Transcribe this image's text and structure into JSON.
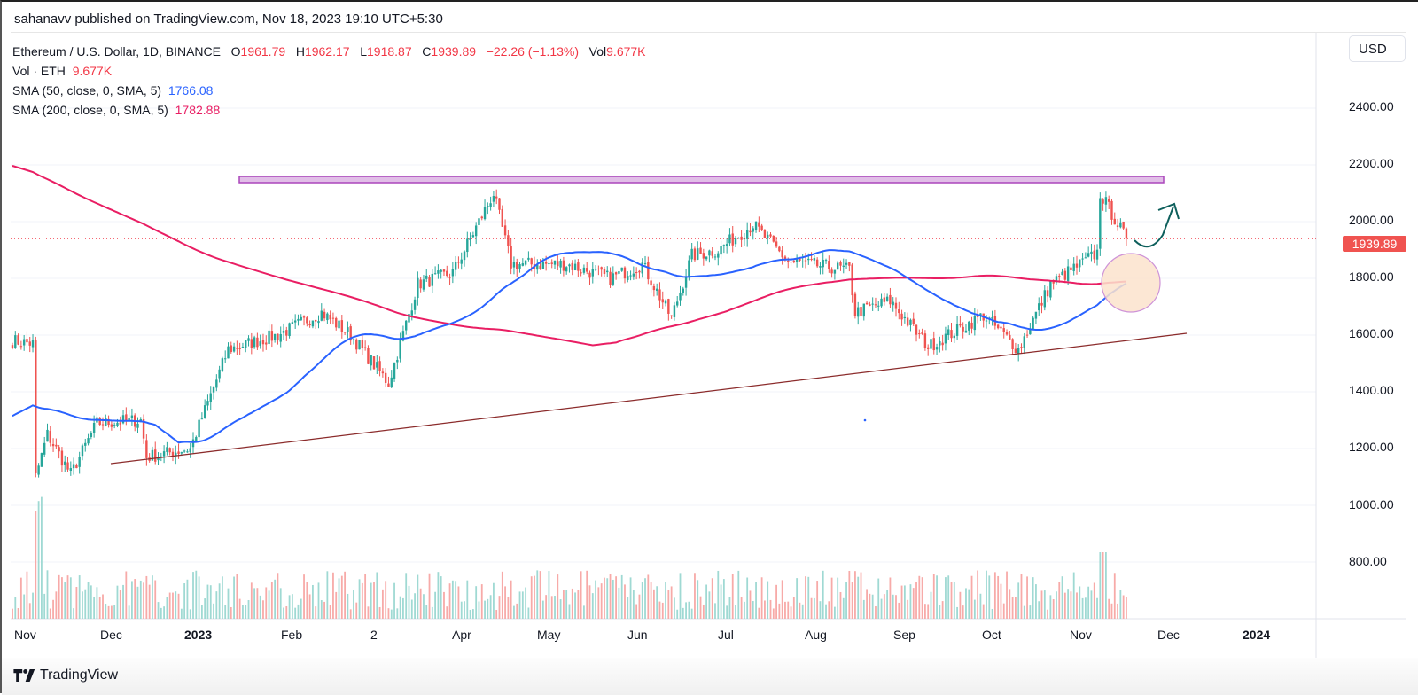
{
  "publish_bar": "sahanavv published on TradingView.com, Nov 18, 2023 19:10 UTC+5:30",
  "legend": {
    "symbol": "Ethereum / U.S. Dollar, 1D, BINANCE",
    "o_label": "O",
    "o_value": "1961.79",
    "h_label": "H",
    "h_value": "1962.17",
    "l_label": "L",
    "l_value": "1918.87",
    "c_label": "C",
    "c_value": "1939.89",
    "change": "−22.26 (−1.13%)",
    "vol_label": "Vol",
    "vol_value": "9.677K",
    "vol_eth_label": "Vol · ETH",
    "vol_eth_value": "9.677K",
    "sma50_label": "SMA (50, close, 0, SMA, 5)",
    "sma50_value": "1766.08",
    "sma200_label": "SMA (200, close, 0, SMA, 5)",
    "sma200_value": "1782.88"
  },
  "currency_button": "USD",
  "last_price_tag": "1939.89",
  "footer": {
    "brand": "TradingView",
    "logo_icon": "tradingview-logo-icon"
  },
  "colors": {
    "up": "#26a69a",
    "down": "#ef5350",
    "sma50": "#2962ff",
    "sma200": "#e91e63",
    "trendline": "#8b2b2b",
    "resistance_fill": "#e1bee7",
    "resistance_stroke": "#ab47bc",
    "circle_fill": "#fbe3cc",
    "circle_stroke": "#ce93d8",
    "arrow": "#0e5f5c",
    "last_price_line": "#f23645"
  },
  "chart_data": {
    "type": "candlestick",
    "title": "Ethereum / U.S. Dollar, 1D, BINANCE",
    "xlabel": "",
    "ylabel": "USD",
    "ylim": [
      560,
      2590
    ],
    "y_ticks": [
      "2400.00",
      "2200.00",
      "2000.00",
      "1800.00",
      "1600.00",
      "1400.00",
      "1200.00",
      "1000.00",
      "800.00"
    ],
    "x_ticks": [
      {
        "label": "Nov",
        "bold": false
      },
      {
        "label": "Dec",
        "bold": false
      },
      {
        "label": "2023",
        "bold": true
      },
      {
        "label": "Feb",
        "bold": false
      },
      {
        "label": "2",
        "bold": false
      },
      {
        "label": "Apr",
        "bold": false
      },
      {
        "label": "May",
        "bold": false
      },
      {
        "label": "Jun",
        "bold": false
      },
      {
        "label": "Jul",
        "bold": false
      },
      {
        "label": "Aug",
        "bold": false
      },
      {
        "label": "Sep",
        "bold": false
      },
      {
        "label": "Oct",
        "bold": false
      },
      {
        "label": "Nov",
        "bold": false
      },
      {
        "label": "Dec",
        "bold": false
      },
      {
        "label": "2024",
        "bold": true
      }
    ],
    "grid": true,
    "last": {
      "open": 1961.79,
      "high": 1962.17,
      "low": 1918.87,
      "close": 1939.89,
      "change": -22.26,
      "change_pct": -1.13,
      "volume": "9.677K"
    },
    "price_waypoints": [
      {
        "date": "2022-11-01",
        "close": 1580
      },
      {
        "date": "2022-11-08",
        "close": 1570
      },
      {
        "date": "2022-11-09",
        "close": 1100
      },
      {
        "date": "2022-11-13",
        "close": 1250
      },
      {
        "date": "2022-11-21",
        "close": 1110
      },
      {
        "date": "2022-11-30",
        "close": 1290
      },
      {
        "date": "2022-12-15",
        "close": 1300
      },
      {
        "date": "2022-12-17",
        "close": 1170
      },
      {
        "date": "2023-01-01",
        "close": 1200
      },
      {
        "date": "2023-01-14",
        "close": 1550
      },
      {
        "date": "2023-01-31",
        "close": 1600
      },
      {
        "date": "2023-02-15",
        "close": 1680
      },
      {
        "date": "2023-02-25",
        "close": 1600
      },
      {
        "date": "2023-03-10",
        "close": 1430
      },
      {
        "date": "2023-03-20",
        "close": 1780
      },
      {
        "date": "2023-04-01",
        "close": 1820
      },
      {
        "date": "2023-04-15",
        "close": 2100
      },
      {
        "date": "2023-04-21",
        "close": 1850
      },
      {
        "date": "2023-05-10",
        "close": 1850
      },
      {
        "date": "2023-05-25",
        "close": 1800
      },
      {
        "date": "2023-06-05",
        "close": 1850
      },
      {
        "date": "2023-06-15",
        "close": 1660
      },
      {
        "date": "2023-06-22",
        "close": 1880
      },
      {
        "date": "2023-07-01",
        "close": 1900
      },
      {
        "date": "2023-07-13",
        "close": 1990
      },
      {
        "date": "2023-07-25",
        "close": 1860
      },
      {
        "date": "2023-08-15",
        "close": 1830
      },
      {
        "date": "2023-08-17",
        "close": 1680
      },
      {
        "date": "2023-08-29",
        "close": 1720
      },
      {
        "date": "2023-09-11",
        "close": 1560
      },
      {
        "date": "2023-09-30",
        "close": 1670
      },
      {
        "date": "2023-10-12",
        "close": 1550
      },
      {
        "date": "2023-10-23",
        "close": 1780
      },
      {
        "date": "2023-11-08",
        "close": 1890
      },
      {
        "date": "2023-11-09",
        "close": 2100
      },
      {
        "date": "2023-11-18",
        "close": 1939.89
      }
    ],
    "series": [
      {
        "name": "SMA 50",
        "color": "#2962ff",
        "last": 1766.08
      },
      {
        "name": "SMA 200",
        "color": "#e91e63",
        "last": 1782.88
      },
      {
        "name": "Volume",
        "color": "mixed"
      }
    ],
    "annotations": [
      {
        "type": "rectangle",
        "label": "resistance zone",
        "y_range": [
          2135,
          2160
        ],
        "x_range": [
          "2023-01-14",
          "2023-11-29"
        ]
      },
      {
        "type": "trendline",
        "label": "ascending support",
        "from": {
          "date": "2022-11-30",
          "price": 1142
        },
        "to": {
          "date": "2023-11-29",
          "price": 1605
        }
      },
      {
        "type": "circle",
        "label": "golden cross zone",
        "center": {
          "date": "2023-11-19",
          "price": 1780
        }
      },
      {
        "type": "arrow",
        "label": "projected bounce",
        "from": {
          "date": "2023-11-19",
          "price": 1950
        },
        "to": {
          "date": "2023-11-23",
          "price": 2060
        }
      }
    ],
    "legend_position": "top-left"
  }
}
